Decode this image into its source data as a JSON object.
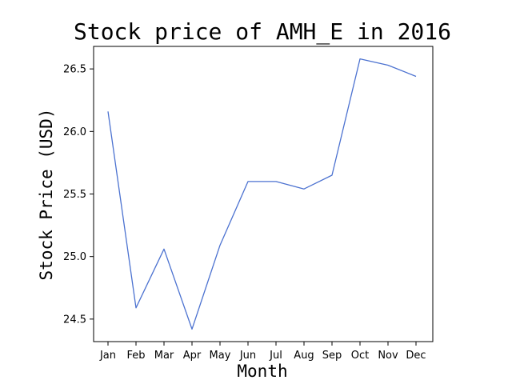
{
  "chart_data": {
    "type": "line",
    "title": "Stock price of AMH_E in 2016",
    "xlabel": "Month",
    "ylabel": "Stock Price (USD)",
    "categories": [
      "Jan",
      "Feb",
      "Mar",
      "Apr",
      "May",
      "Jun",
      "Jul",
      "Aug",
      "Sep",
      "Oct",
      "Nov",
      "Dec"
    ],
    "series": [
      {
        "values": [
          26.16,
          24.59,
          25.06,
          24.42,
          25.09,
          25.6,
          25.6,
          25.54,
          25.65,
          26.58,
          26.53,
          26.44
        ],
        "color": "#4c72d0"
      }
    ],
    "yticks": [
      "24.5",
      "25.0",
      "25.5",
      "26.0",
      "26.5"
    ],
    "ylim": [
      24.32,
      26.68
    ],
    "grid": false,
    "legend": "none"
  }
}
